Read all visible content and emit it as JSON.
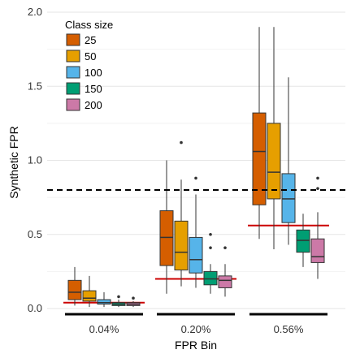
{
  "chart_data": {
    "type": "boxplot",
    "xlabel": "FPR Bin",
    "ylabel": "Synthetic FPR",
    "ylim": [
      0,
      2.0
    ],
    "yticks": [
      "0.0",
      "0.5",
      "1.0",
      "1.5",
      "2.0"
    ],
    "ytick_values": [
      0,
      0.5,
      1.0,
      1.5,
      2.0
    ],
    "categories": [
      "0.04%",
      "0.20%",
      "0.56%"
    ],
    "grid": true,
    "legend": {
      "title": "Class size",
      "placement": "top-left",
      "entries": [
        "25",
        "50",
        "100",
        "150",
        "200"
      ]
    },
    "reference_line": {
      "value": 0.8,
      "style": "dashed",
      "color": "#000000"
    },
    "series": [
      {
        "name": "25",
        "color": "#D55E00",
        "boxes": [
          {
            "whisker_low": 0.02,
            "q1": 0.06,
            "median": 0.11,
            "q3": 0.19,
            "whisker_high": 0.28,
            "outliers": []
          },
          {
            "whisker_low": 0.1,
            "q1": 0.29,
            "median": 0.48,
            "q3": 0.66,
            "whisker_high": 1.0,
            "outliers": []
          },
          {
            "whisker_low": 0.47,
            "q1": 0.7,
            "median": 1.06,
            "q3": 1.32,
            "whisker_high": 1.9,
            "outliers": []
          }
        ]
      },
      {
        "name": "50",
        "color": "#E69F00",
        "boxes": [
          {
            "whisker_low": 0.01,
            "q1": 0.05,
            "median": 0.07,
            "q3": 0.12,
            "whisker_high": 0.22,
            "outliers": []
          },
          {
            "whisker_low": 0.15,
            "q1": 0.26,
            "median": 0.38,
            "q3": 0.59,
            "whisker_high": 0.87,
            "outliers": [
              1.12
            ]
          },
          {
            "whisker_low": 0.4,
            "q1": 0.74,
            "median": 0.92,
            "q3": 1.25,
            "whisker_high": 1.9,
            "outliers": []
          }
        ]
      },
      {
        "name": "100",
        "color": "#56B4E9",
        "boxes": [
          {
            "whisker_low": 0.01,
            "q1": 0.03,
            "median": 0.04,
            "q3": 0.06,
            "whisker_high": 0.11,
            "outliers": []
          },
          {
            "whisker_low": 0.14,
            "q1": 0.24,
            "median": 0.33,
            "q3": 0.48,
            "whisker_high": 0.77,
            "outliers": [
              0.88
            ]
          },
          {
            "whisker_low": 0.43,
            "q1": 0.58,
            "median": 0.74,
            "q3": 0.91,
            "whisker_high": 1.56,
            "outliers": []
          }
        ]
      },
      {
        "name": "150",
        "color": "#009E73",
        "boxes": [
          {
            "whisker_low": 0.01,
            "q1": 0.02,
            "median": 0.03,
            "q3": 0.04,
            "whisker_high": 0.06,
            "outliers": [
              0.08
            ]
          },
          {
            "whisker_low": 0.1,
            "q1": 0.16,
            "median": 0.2,
            "q3": 0.25,
            "whisker_high": 0.3,
            "outliers": [
              0.41,
              0.5
            ]
          },
          {
            "whisker_low": 0.28,
            "q1": 0.38,
            "median": 0.46,
            "q3": 0.53,
            "whisker_high": 0.64,
            "outliers": []
          }
        ]
      },
      {
        "name": "200",
        "color": "#CC79A7",
        "boxes": [
          {
            "whisker_low": 0.01,
            "q1": 0.02,
            "median": 0.03,
            "q3": 0.04,
            "whisker_high": 0.05,
            "outliers": [
              0.07
            ]
          },
          {
            "whisker_low": 0.08,
            "q1": 0.14,
            "median": 0.19,
            "q3": 0.22,
            "whisker_high": 0.3,
            "outliers": [
              0.41
            ]
          },
          {
            "whisker_low": 0.2,
            "q1": 0.31,
            "median": 0.35,
            "q3": 0.47,
            "whisker_high": 0.65,
            "outliers": [
              0.81,
              0.88
            ]
          }
        ]
      }
    ],
    "bin_reference_lines": [
      {
        "category": "0.04%",
        "value": 0.04,
        "color": "#CC0000"
      },
      {
        "category": "0.20%",
        "value": 0.2,
        "color": "#CC0000"
      },
      {
        "category": "0.56%",
        "value": 0.56,
        "color": "#CC0000"
      }
    ]
  }
}
